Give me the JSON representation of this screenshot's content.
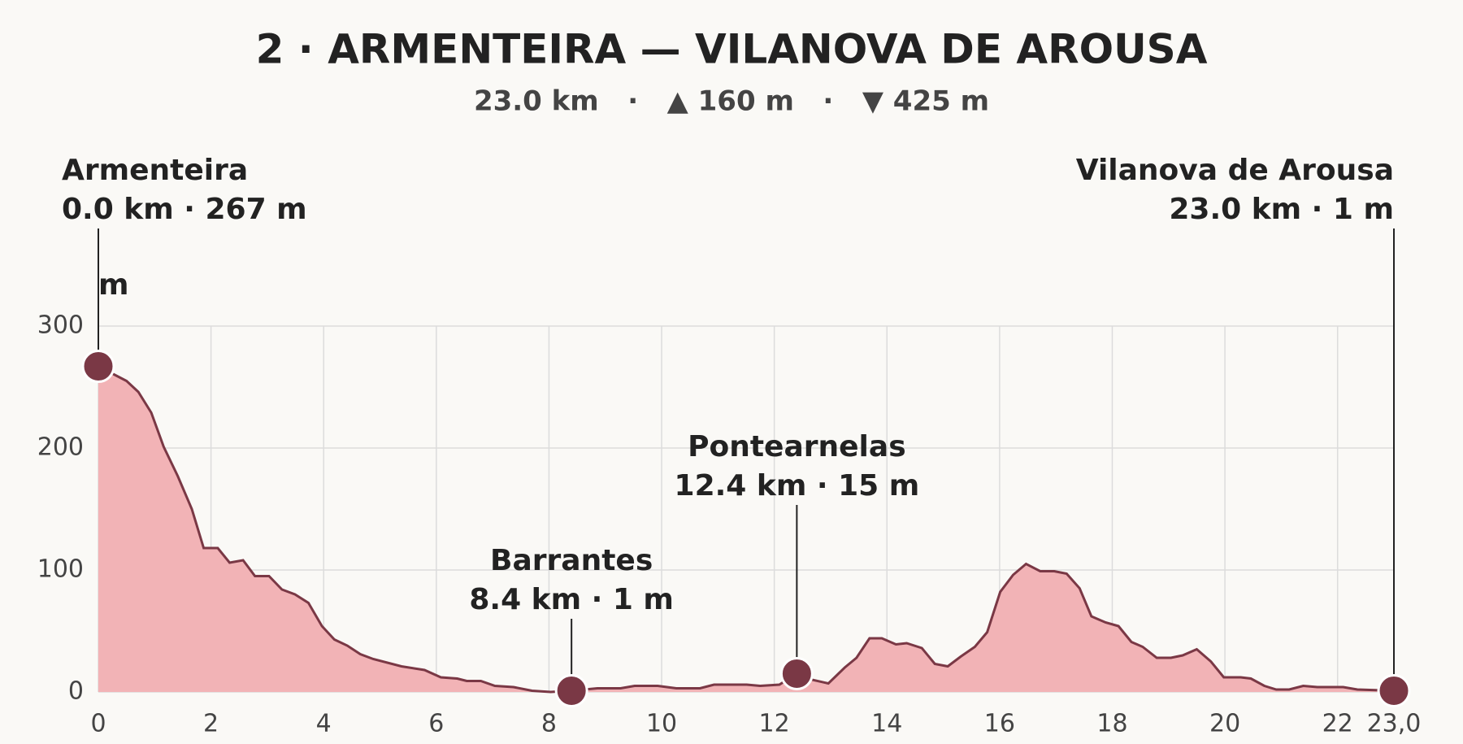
{
  "chart_data": {
    "type": "area",
    "title": "2 · ARMENTEIRA — VILANOVA DE AROUSA",
    "subtitle": "23.0 km   ·   ▲ 160 m   ·   ▼ 425 m",
    "ylabel": "m",
    "x": [
      0,
      0.25,
      0.5,
      0.71,
      0.94,
      1.16,
      1.41,
      1.66,
      1.87,
      2.12,
      2.33,
      2.57,
      2.78,
      3.03,
      3.26,
      3.49,
      3.73,
      3.97,
      4.19,
      4.42,
      4.65,
      4.88,
      5.38,
      5.79,
      6.08,
      6.37,
      6.54,
      6.79,
      7.04,
      7.37,
      7.7,
      8.03,
      8.4,
      8.86,
      9.27,
      9.52,
      9.93,
      10.26,
      10.68,
      10.93,
      11.51,
      11.75,
      12.09,
      12.4,
      12.67,
      12.96,
      13.25,
      13.46,
      13.69,
      13.91,
      14.16,
      14.35,
      14.62,
      14.85,
      15.08,
      15.31,
      15.56,
      15.78,
      16.01,
      16.24,
      16.47,
      16.72,
      16.97,
      17.19,
      17.42,
      17.63,
      17.88,
      18.11,
      18.34,
      18.54,
      18.79,
      19.04,
      19.25,
      19.5,
      19.75,
      19.98,
      20.28,
      20.46,
      20.7,
      20.91,
      21.14,
      21.39,
      21.64,
      22.1,
      22.35,
      23.0
    ],
    "values": [
      267,
      261,
      255,
      246,
      229,
      201,
      177,
      150,
      118,
      118,
      106,
      108,
      95,
      95,
      84,
      80,
      73,
      54,
      43,
      38,
      31,
      27,
      21,
      18,
      12,
      11,
      9,
      9,
      5,
      4,
      1,
      0,
      1,
      3,
      3,
      5,
      5,
      3,
      3,
      6,
      6,
      5,
      6,
      15,
      10,
      7,
      20,
      28,
      44,
      44,
      39,
      40,
      36,
      23,
      21,
      29,
      37,
      49,
      82,
      96,
      105,
      99,
      99,
      97,
      85,
      62,
      57,
      54,
      41,
      37,
      28,
      28,
      30,
      35,
      25,
      12,
      12,
      11,
      5,
      2,
      2,
      5,
      4,
      4,
      2,
      1
    ],
    "color": "#7a3845",
    "fill": "#f2b3b6",
    "xlim": [
      0,
      23.0
    ],
    "ylim": [
      0,
      300
    ],
    "xticks": [
      0,
      2,
      4,
      6,
      8,
      10,
      12,
      14,
      16,
      18,
      20,
      22,
      {
        "value": 23.0,
        "label": "23,0"
      }
    ],
    "yticks": [
      0,
      100,
      200,
      300
    ],
    "grid": true,
    "waypoints": [
      {
        "name": "Armenteira",
        "label": "0.0 km · 267 m",
        "km": 0.0,
        "elev": 267
      },
      {
        "name": "Barrantes",
        "label": "8.4 km · 1 m",
        "km": 8.4,
        "elev": 1
      },
      {
        "name": "Pontearnelas",
        "label": "12.4 km · 15 m",
        "km": 12.4,
        "elev": 15
      },
      {
        "name": "Vilanova de Arousa",
        "label": "23.0 km · 1 m",
        "km": 23.0,
        "elev": 1
      }
    ]
  }
}
